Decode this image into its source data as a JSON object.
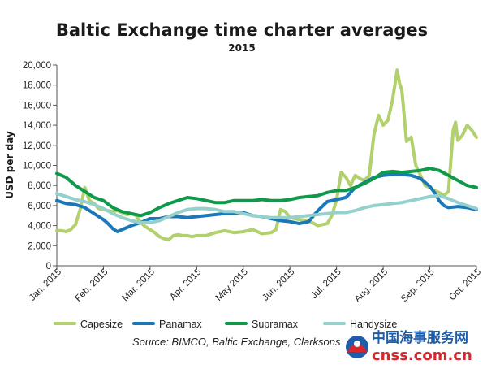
{
  "chart_data": {
    "type": "line",
    "title": "Baltic Exchange time charter averages",
    "subtitle": "2015",
    "ylabel": "USD per day",
    "xlabel": "",
    "ylim": [
      0,
      20000
    ],
    "yticks": [
      0,
      2000,
      4000,
      6000,
      8000,
      10000,
      12000,
      14000,
      16000,
      18000,
      20000
    ],
    "ytick_labels": [
      "0",
      "2,000",
      "4,000",
      "6,000",
      "8,000",
      "10,000",
      "12,000",
      "14,000",
      "16,000",
      "18,000",
      "20,000"
    ],
    "xlim": [
      0,
      9
    ],
    "xticks": [
      0,
      1,
      2,
      3,
      4,
      5,
      6,
      7,
      8,
      9
    ],
    "xtick_labels": [
      "Jan. 2015",
      "Feb. 2015",
      "Mar. 2015",
      "Apr. 2015",
      "May 2015",
      "Jun. 2015",
      "Jul. 2015",
      "Aug. 2015",
      "Sep. 2015",
      "Oct. 2015"
    ],
    "grid": false,
    "legend_position": "bottom",
    "series": [
      {
        "name": "Capesize",
        "color": "#b2d06b",
        "x": [
          0,
          0.1,
          0.2,
          0.3,
          0.4,
          0.5,
          0.6,
          0.7,
          0.8,
          0.9,
          1.0,
          1.1,
          1.2,
          1.3,
          1.4,
          1.5,
          1.6,
          1.7,
          1.8,
          1.9,
          2.0,
          2.1,
          2.2,
          2.3,
          2.4,
          2.5,
          2.6,
          2.7,
          2.8,
          2.9,
          3.0,
          3.2,
          3.4,
          3.6,
          3.8,
          4.0,
          4.2,
          4.4,
          4.6,
          4.7,
          4.8,
          4.9,
          5.0,
          5.2,
          5.4,
          5.6,
          5.8,
          5.9,
          6.0,
          6.1,
          6.2,
          6.3,
          6.4,
          6.5,
          6.6,
          6.7,
          6.8,
          6.9,
          7.0,
          7.1,
          7.2,
          7.3,
          7.35,
          7.4,
          7.5,
          7.6,
          7.7,
          7.8,
          7.9,
          8.0,
          8.1,
          8.2,
          8.3,
          8.4,
          8.5,
          8.55,
          8.6,
          8.7,
          8.8,
          8.9,
          9.0
        ],
        "values": [
          3500,
          3500,
          3400,
          3600,
          4100,
          5600,
          7800,
          6500,
          6200,
          5700,
          5600,
          5500,
          5400,
          5500,
          5300,
          5100,
          5200,
          5000,
          4300,
          3900,
          3600,
          3300,
          2900,
          2700,
          2600,
          3000,
          3100,
          3000,
          3000,
          2900,
          3000,
          3000,
          3300,
          3500,
          3300,
          3400,
          3600,
          3200,
          3300,
          3600,
          5600,
          5400,
          4800,
          4600,
          4500,
          4000,
          4200,
          5000,
          6600,
          9300,
          8800,
          8000,
          9000,
          8700,
          8500,
          9000,
          13000,
          15000,
          14000,
          14500,
          16500,
          19500,
          18200,
          17500,
          12400,
          12800,
          10000,
          9000,
          8000,
          7800,
          7500,
          7300,
          7000,
          7400,
          13500,
          14300,
          12500,
          13000,
          14000,
          13500,
          12800
        ]
      },
      {
        "name": "Panamax",
        "color": "#1b78b8",
        "x": [
          0,
          0.2,
          0.4,
          0.6,
          0.8,
          1.0,
          1.1,
          1.2,
          1.3,
          1.4,
          1.6,
          1.8,
          2.0,
          2.2,
          2.4,
          2.6,
          2.8,
          3.0,
          3.2,
          3.4,
          3.6,
          3.8,
          4.0,
          4.2,
          4.4,
          4.6,
          4.8,
          5.0,
          5.2,
          5.4,
          5.6,
          5.8,
          6.0,
          6.2,
          6.4,
          6.6,
          6.8,
          7.0,
          7.2,
          7.4,
          7.6,
          7.8,
          7.9,
          8.0,
          8.1,
          8.2,
          8.3,
          8.4,
          8.6,
          8.8,
          9.0
        ],
        "values": [
          6500,
          6200,
          6100,
          5800,
          5200,
          4600,
          4200,
          3700,
          3400,
          3600,
          4000,
          4300,
          4700,
          4700,
          4900,
          4900,
          4800,
          4900,
          5000,
          5100,
          5200,
          5200,
          5300,
          5000,
          4900,
          4700,
          4500,
          4400,
          4200,
          4400,
          5500,
          6400,
          6600,
          6800,
          7800,
          8300,
          8800,
          9000,
          9100,
          9100,
          9000,
          8700,
          8300,
          7900,
          7300,
          6500,
          6000,
          5800,
          5900,
          5800,
          5600
        ]
      },
      {
        "name": "Supramax",
        "color": "#0e9a4a",
        "x": [
          0,
          0.2,
          0.4,
          0.6,
          0.8,
          1.0,
          1.2,
          1.4,
          1.6,
          1.8,
          2.0,
          2.2,
          2.4,
          2.6,
          2.8,
          3.0,
          3.2,
          3.4,
          3.6,
          3.8,
          4.0,
          4.2,
          4.4,
          4.6,
          4.8,
          5.0,
          5.2,
          5.4,
          5.6,
          5.8,
          6.0,
          6.2,
          6.4,
          6.6,
          6.8,
          7.0,
          7.2,
          7.4,
          7.6,
          7.8,
          8.0,
          8.2,
          8.4,
          8.6,
          8.8,
          9.0
        ],
        "values": [
          9200,
          8800,
          8000,
          7400,
          6800,
          6500,
          5800,
          5400,
          5200,
          5000,
          5300,
          5800,
          6200,
          6500,
          6800,
          6700,
          6500,
          6300,
          6300,
          6500,
          6500,
          6500,
          6600,
          6500,
          6500,
          6600,
          6800,
          6900,
          7000,
          7300,
          7500,
          7500,
          7800,
          8200,
          8700,
          9300,
          9400,
          9300,
          9400,
          9500,
          9700,
          9500,
          9000,
          8500,
          8000,
          7800
        ]
      },
      {
        "name": "Handysize",
        "color": "#95d0cc",
        "x": [
          0,
          0.2,
          0.4,
          0.6,
          0.8,
          1.0,
          1.2,
          1.4,
          1.6,
          1.8,
          2.0,
          2.2,
          2.4,
          2.6,
          2.8,
          3.0,
          3.2,
          3.4,
          3.6,
          3.8,
          4.0,
          4.2,
          4.4,
          4.6,
          4.8,
          5.0,
          5.2,
          5.4,
          5.6,
          5.8,
          6.0,
          6.2,
          6.4,
          6.6,
          6.8,
          7.0,
          7.2,
          7.4,
          7.6,
          7.8,
          8.0,
          8.2,
          8.4,
          8.6,
          8.8,
          9.0
        ],
        "values": [
          7200,
          6900,
          6600,
          6400,
          6100,
          5700,
          5200,
          4800,
          4500,
          4300,
          4300,
          4500,
          4900,
          5300,
          5600,
          5700,
          5700,
          5600,
          5400,
          5400,
          5200,
          5000,
          4900,
          4800,
          4800,
          4800,
          4900,
          5000,
          5100,
          5200,
          5300,
          5300,
          5500,
          5800,
          6000,
          6100,
          6200,
          6300,
          6500,
          6700,
          6900,
          7000,
          6700,
          6300,
          6000,
          5700
        ]
      }
    ],
    "source": "Source: BIMCO, Baltic Exchange, Clarksons"
  },
  "watermark": {
    "chinese": "中国海事服务网",
    "domain": "cnss.com.cn"
  }
}
